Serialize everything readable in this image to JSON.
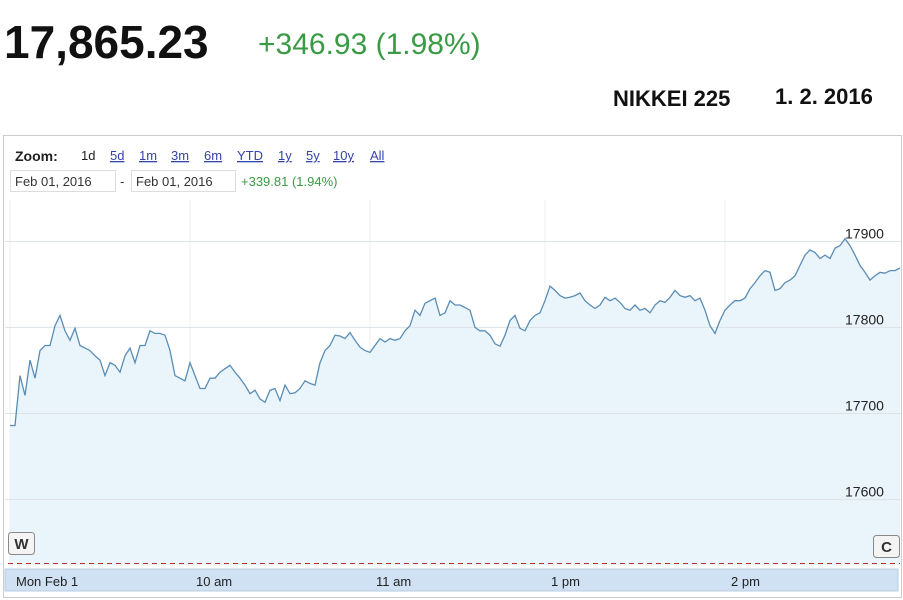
{
  "header": {
    "price": "17,865.23",
    "change": "+346.93 (1.98%)",
    "index_name": "NIKKEI 225",
    "date": "1. 2. 2016"
  },
  "zoom": {
    "label": "Zoom:",
    "options": [
      "1d",
      "5d",
      "1m",
      "3m",
      "6m",
      "YTD",
      "1y",
      "5y",
      "10y",
      "All"
    ]
  },
  "range": {
    "from": "Feb 01, 2016",
    "separator": "-",
    "to": "Feb 01, 2016",
    "change": "+339.81 (1.94%)"
  },
  "buttons": [
    "W",
    "C"
  ],
  "chart_data": {
    "type": "line",
    "color": "#5a8db5",
    "fill": "#eaf4fb",
    "grid": true,
    "categories": [
      "Mon Feb 1",
      null,
      null,
      null,
      null,
      null,
      null,
      null,
      null,
      null,
      null,
      null,
      null,
      null,
      null,
      null,
      null,
      null,
      null,
      null,
      null,
      null,
      null,
      null,
      null,
      null,
      null,
      null,
      null,
      null,
      null,
      null,
      null,
      null,
      null,
      null,
      "10 am",
      null,
      null,
      null,
      null,
      null,
      null,
      null,
      null,
      null,
      null,
      null,
      null,
      null,
      null,
      null,
      null,
      null,
      null,
      null,
      null,
      null,
      null,
      null,
      null,
      null,
      null,
      null,
      null,
      null,
      null,
      null,
      null,
      null,
      null,
      null,
      "11 am",
      null,
      null,
      null,
      null,
      null,
      null,
      null,
      null,
      null,
      null,
      null,
      null,
      null,
      null,
      null,
      null,
      null,
      null,
      null,
      null,
      null,
      null,
      null,
      null,
      null,
      null,
      null,
      null,
      null,
      null,
      null,
      null,
      null,
      null,
      "1 pm",
      null,
      null,
      null,
      null,
      null,
      null,
      null,
      null,
      null,
      null,
      null,
      null,
      null,
      null,
      null,
      null,
      null,
      null,
      null,
      null,
      null,
      null,
      null,
      null,
      null,
      null,
      null,
      null,
      null,
      null,
      null,
      null,
      null,
      null,
      null,
      "2 pm",
      null,
      null,
      null,
      null,
      null,
      null,
      null,
      null,
      null,
      null,
      null,
      null,
      null,
      null,
      null,
      null,
      null,
      null,
      null,
      null,
      null,
      null,
      null,
      null,
      null,
      null,
      null,
      null,
      null,
      null,
      null,
      null,
      null,
      null,
      null
    ],
    "values": [
      17686,
      17686,
      17744,
      17721,
      17762,
      17741,
      17773,
      17779,
      17779,
      17802,
      17814,
      17796,
      17785,
      17799,
      17779,
      17776,
      17773,
      17767,
      17762,
      17744,
      17759,
      17756,
      17748,
      17767,
      17776,
      17759,
      17779,
      17779,
      17796,
      17793,
      17793,
      17791,
      17773,
      17744,
      17741,
      17738,
      17759,
      17744,
      17729,
      17729,
      17741,
      17741,
      17748,
      17752,
      17756,
      17748,
      17741,
      17733,
      17723,
      17727,
      17717,
      17713,
      17727,
      17729,
      17715,
      17733,
      17723,
      17724,
      17729,
      17738,
      17735,
      17733,
      17759,
      17773,
      17779,
      17791,
      17790,
      17787,
      17794,
      17785,
      17777,
      17773,
      17771,
      17779,
      17787,
      17783,
      17787,
      17785,
      17787,
      17796,
      17802,
      17820,
      17814,
      17828,
      17831,
      17834,
      17814,
      17817,
      17831,
      17826,
      17826,
      17823,
      17820,
      17800,
      17796,
      17796,
      17791,
      17781,
      17778,
      17791,
      17808,
      17814,
      17799,
      17796,
      17808,
      17814,
      17817,
      17831,
      17848,
      17843,
      17837,
      17834,
      17835,
      17837,
      17840,
      17831,
      17826,
      17822,
      17826,
      17835,
      17831,
      17834,
      17829,
      17822,
      17820,
      17826,
      17820,
      17822,
      17817,
      17826,
      17831,
      17829,
      17835,
      17843,
      17837,
      17835,
      17837,
      17831,
      17834,
      17820,
      17802,
      17793,
      17808,
      17820,
      17826,
      17831,
      17831,
      17834,
      17845,
      17852,
      17860,
      17866,
      17864,
      17843,
      17845,
      17852,
      17855,
      17860,
      17872,
      17884,
      17890,
      17887,
      17880,
      17884,
      17880,
      17892,
      17895,
      17903,
      17895,
      17884,
      17872,
      17864,
      17855,
      17860,
      17864,
      17863,
      17866,
      17866,
      17869
    ],
    "ylim": [
      17524,
      17948
    ],
    "yticks": [
      17600,
      17700,
      17800,
      17900
    ]
  }
}
